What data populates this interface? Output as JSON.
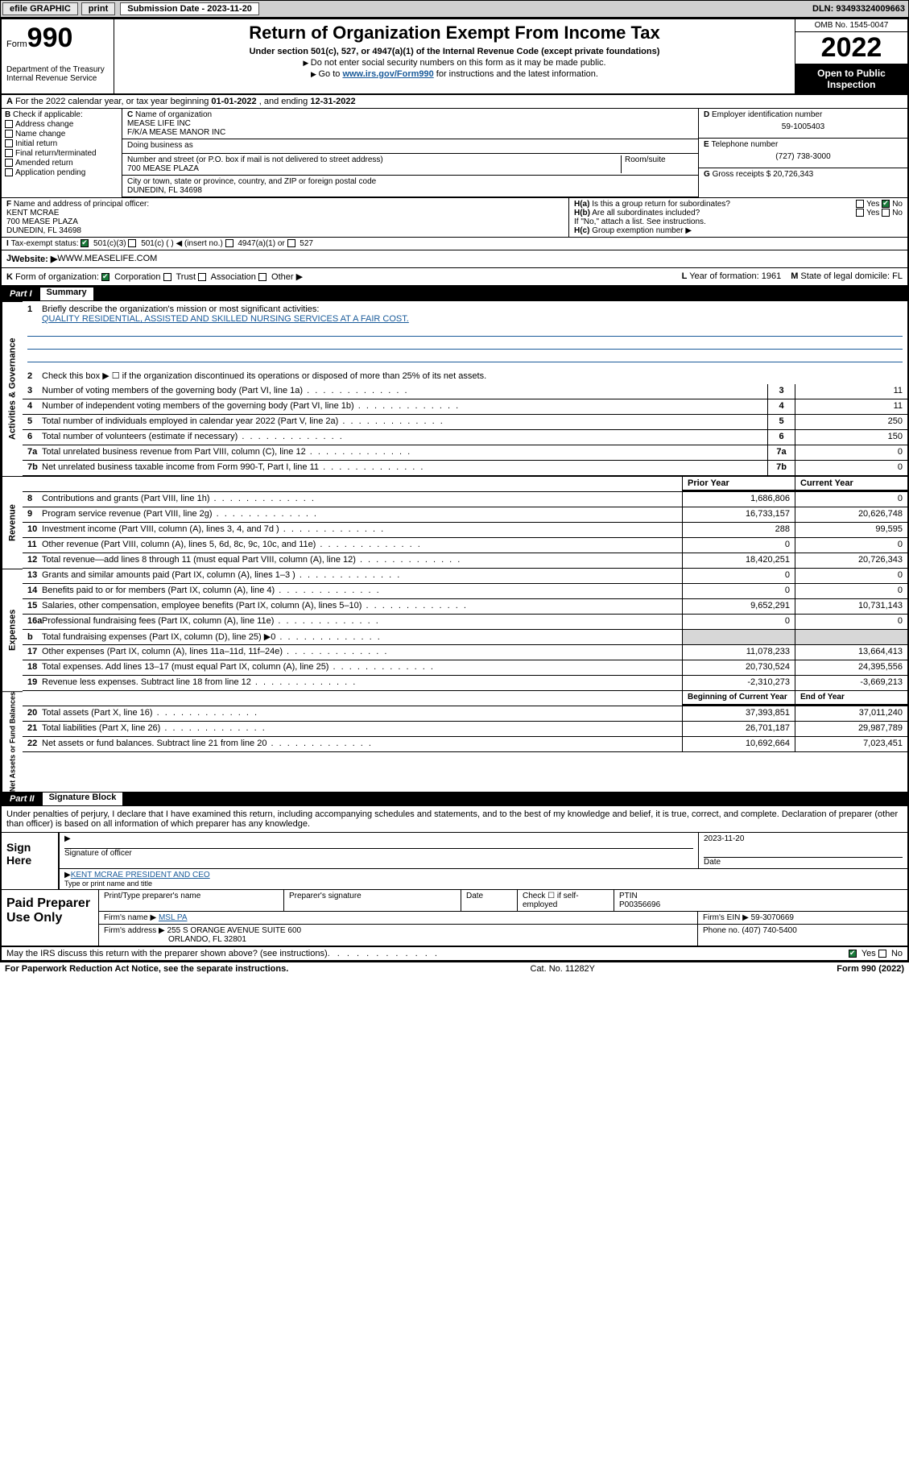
{
  "topbar": {
    "efile": "efile GRAPHIC",
    "print": "print",
    "subdate_label": "Submission Date - 2023-11-20",
    "dln": "DLN: 93493324009663"
  },
  "header": {
    "form_prefix": "Form",
    "form_num": "990",
    "dept": "Department of the Treasury\nInternal Revenue Service",
    "title": "Return of Organization Exempt From Income Tax",
    "sub": "Under section 501(c), 527, or 4947(a)(1) of the Internal Revenue Code (except private foundations)",
    "note1": "Do not enter social security numbers on this form as it may be made public.",
    "note2_pre": "Go to ",
    "note2_link": "www.irs.gov/Form990",
    "note2_post": " for instructions and the latest information.",
    "omb": "OMB No. 1545-0047",
    "year": "2022",
    "open": "Open to Public Inspection"
  },
  "A": {
    "text_pre": "For the 2022 calendar year, or tax year beginning ",
    "beg": "01-01-2022",
    "mid": " , and ending ",
    "end": "12-31-2022"
  },
  "B": {
    "label": "Check if applicable:",
    "opts": [
      "Address change",
      "Name change",
      "Initial return",
      "Final return/terminated",
      "Amended return",
      "Application pending"
    ]
  },
  "C": {
    "label": "Name of organization",
    "name1": "MEASE LIFE INC",
    "name2": "F/K/A MEASE MANOR INC",
    "dba_label": "Doing business as",
    "addr_label": "Number and street (or P.O. box if mail is not delivered to street address)",
    "addr": "700 MEASE PLAZA",
    "room_label": "Room/suite",
    "city_label": "City or town, state or province, country, and ZIP or foreign postal code",
    "city": "DUNEDIN, FL  34698"
  },
  "D": {
    "label": "Employer identification number",
    "val": "59-1005403"
  },
  "E": {
    "label": "Telephone number",
    "val": "(727) 738-3000"
  },
  "G": {
    "label": "Gross receipts $",
    "val": "20,726,343"
  },
  "F": {
    "label": "Name and address of principal officer:",
    "name": "KENT MCRAE",
    "addr1": "700 MEASE PLAZA",
    "addr2": "DUNEDIN, FL  34698"
  },
  "H": {
    "a": "Is this a group return for subordinates?",
    "a_yes": "Yes",
    "a_no": "No",
    "b": "Are all subordinates included?",
    "b_note": "If \"No,\" attach a list. See instructions.",
    "c": "Group exemption number ▶"
  },
  "I": {
    "label": "Tax-exempt status:",
    "o1": "501(c)(3)",
    "o2": "501(c) (  ) ◀ (insert no.)",
    "o3": "4947(a)(1) or",
    "o4": "527"
  },
  "J": {
    "label": "Website: ▶",
    "val": "WWW.MEASELIFE.COM"
  },
  "K": {
    "label": "Form of organization:",
    "opts": [
      "Corporation",
      "Trust",
      "Association",
      "Other ▶"
    ],
    "L": "Year of formation: 1961",
    "M": "State of legal domicile: FL"
  },
  "part1": {
    "num": "Part I",
    "title": "Summary"
  },
  "mission": {
    "q": "Briefly describe the organization's mission or most significant activities:",
    "a": "QUALITY RESIDENTIAL, ASSISTED AND SKILLED NURSING SERVICES AT A FAIR COST."
  },
  "line2": "Check this box ▶ ☐  if the organization discontinued its operations or disposed of more than 25% of its net assets.",
  "gov_rows": [
    {
      "n": "3",
      "t": "Number of voting members of the governing body (Part VI, line 1a)",
      "v": "11"
    },
    {
      "n": "4",
      "t": "Number of independent voting members of the governing body (Part VI, line 1b)",
      "v": "11"
    },
    {
      "n": "5",
      "t": "Total number of individuals employed in calendar year 2022 (Part V, line 2a)",
      "v": "250"
    },
    {
      "n": "6",
      "t": "Total number of volunteers (estimate if necessary)",
      "v": "150"
    },
    {
      "n": "7a",
      "t": "Total unrelated business revenue from Part VIII, column (C), line 12",
      "v": "0"
    },
    {
      "n": "7b",
      "t": "Net unrelated business taxable income from Form 990-T, Part I, line 11",
      "v": "0"
    }
  ],
  "colhdr": {
    "prior": "Prior Year",
    "curr": "Current Year"
  },
  "rev_rows": [
    {
      "n": "8",
      "t": "Contributions and grants (Part VIII, line 1h)",
      "p": "1,686,806",
      "c": "0"
    },
    {
      "n": "9",
      "t": "Program service revenue (Part VIII, line 2g)",
      "p": "16,733,157",
      "c": "20,626,748"
    },
    {
      "n": "10",
      "t": "Investment income (Part VIII, column (A), lines 3, 4, and 7d )",
      "p": "288",
      "c": "99,595"
    },
    {
      "n": "11",
      "t": "Other revenue (Part VIII, column (A), lines 5, 6d, 8c, 9c, 10c, and 11e)",
      "p": "0",
      "c": "0"
    },
    {
      "n": "12",
      "t": "Total revenue—add lines 8 through 11 (must equal Part VIII, column (A), line 12)",
      "p": "18,420,251",
      "c": "20,726,343"
    }
  ],
  "exp_rows": [
    {
      "n": "13",
      "t": "Grants and similar amounts paid (Part IX, column (A), lines 1–3 )",
      "p": "0",
      "c": "0"
    },
    {
      "n": "14",
      "t": "Benefits paid to or for members (Part IX, column (A), line 4)",
      "p": "0",
      "c": "0"
    },
    {
      "n": "15",
      "t": "Salaries, other compensation, employee benefits (Part IX, column (A), lines 5–10)",
      "p": "9,652,291",
      "c": "10,731,143"
    },
    {
      "n": "16a",
      "t": "Professional fundraising fees (Part IX, column (A), line 11e)",
      "p": "0",
      "c": "0"
    },
    {
      "n": "b",
      "t": "Total fundraising expenses (Part IX, column (D), line 25) ▶0",
      "p": "shade",
      "c": "shade"
    },
    {
      "n": "17",
      "t": "Other expenses (Part IX, column (A), lines 11a–11d, 11f–24e)",
      "p": "11,078,233",
      "c": "13,664,413"
    },
    {
      "n": "18",
      "t": "Total expenses. Add lines 13–17 (must equal Part IX, column (A), line 25)",
      "p": "20,730,524",
      "c": "24,395,556"
    },
    {
      "n": "19",
      "t": "Revenue less expenses. Subtract line 18 from line 12",
      "p": "-2,310,273",
      "c": "-3,669,213"
    }
  ],
  "bal_hdr": {
    "beg": "Beginning of Current Year",
    "end": "End of Year"
  },
  "bal_rows": [
    {
      "n": "20",
      "t": "Total assets (Part X, line 16)",
      "p": "37,393,851",
      "c": "37,011,240"
    },
    {
      "n": "21",
      "t": "Total liabilities (Part X, line 26)",
      "p": "26,701,187",
      "c": "29,987,789"
    },
    {
      "n": "22",
      "t": "Net assets or fund balances. Subtract line 21 from line 20",
      "p": "10,692,664",
      "c": "7,023,451"
    }
  ],
  "part2": {
    "num": "Part II",
    "title": "Signature Block"
  },
  "penalty": "Under penalties of perjury, I declare that I have examined this return, including accompanying schedules and statements, and to the best of my knowledge and belief, it is true, correct, and complete. Declaration of preparer (other than officer) is based on all information of which preparer has any knowledge.",
  "sign": {
    "here": "Sign Here",
    "sig_label": "Signature of officer",
    "date": "2023-11-20",
    "date_label": "Date",
    "name": "KENT MCRAE PRESIDENT AND CEO",
    "name_label": "Type or print name and title"
  },
  "paid": {
    "label": "Paid Preparer Use Only",
    "h1": "Print/Type preparer's name",
    "h2": "Preparer's signature",
    "h3": "Date",
    "h4_pre": "Check ☐ if self-employed",
    "h5": "PTIN",
    "ptin": "P00356696",
    "firm_label": "Firm's name  ▶",
    "firm": "MSL PA",
    "ein_label": "Firm's EIN ▶",
    "ein": "59-3070669",
    "addr_label": "Firm's address ▶",
    "addr1": "255 S ORANGE AVENUE SUITE 600",
    "addr2": "ORLANDO, FL  32801",
    "phone_label": "Phone no.",
    "phone": "(407) 740-5400"
  },
  "discuss": {
    "q": "May the IRS discuss this return with the preparer shown above? (see instructions)",
    "yes": "Yes",
    "no": "No"
  },
  "footer": {
    "pra": "For Paperwork Reduction Act Notice, see the separate instructions.",
    "cat": "Cat. No. 11282Y",
    "form": "Form 990 (2022)"
  },
  "vlabels": {
    "gov": "Activities & Governance",
    "rev": "Revenue",
    "exp": "Expenses",
    "bal": "Net Assets or Fund Balances"
  }
}
